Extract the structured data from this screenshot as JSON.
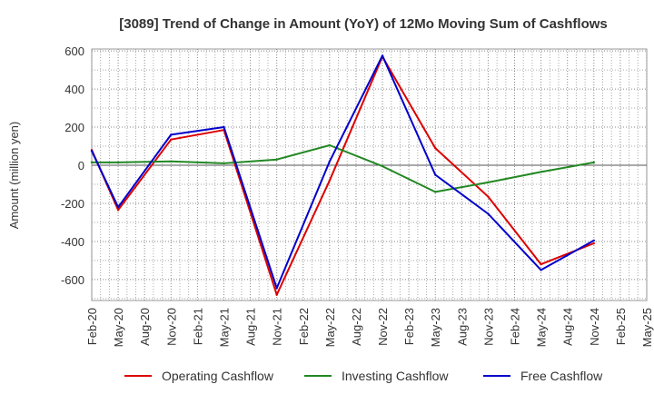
{
  "chart_data": {
    "type": "line",
    "title": "[3089]  Trend of Change in Amount (YoY) of 12Mo Moving Sum of Cashflows",
    "xlabel": "",
    "ylabel": "Amount (million yen)",
    "ylim": [
      -710,
      610
    ],
    "yticks": [
      -600,
      -400,
      -200,
      0,
      200,
      400,
      600
    ],
    "grid": true,
    "legend_position": "bottom",
    "categories": [
      "Feb-20",
      "May-20",
      "Aug-20",
      "Nov-20",
      "Feb-21",
      "May-21",
      "Aug-21",
      "Nov-21",
      "Feb-22",
      "May-22",
      "Aug-22",
      "Nov-22",
      "Feb-23",
      "May-23",
      "Aug-23",
      "Nov-23",
      "Feb-24",
      "May-24",
      "Aug-24",
      "Nov-24",
      "Feb-25",
      "May-25"
    ],
    "series": [
      {
        "name": "Operating Cashflow",
        "color": "#dd0000",
        "values": [
          80,
          -235,
          null,
          135,
          null,
          185,
          null,
          -680,
          null,
          -80,
          null,
          570,
          null,
          90,
          null,
          -165,
          null,
          -520,
          null,
          -410,
          null,
          null
        ]
      },
      {
        "name": "Investing Cashflow",
        "color": "#228822",
        "values": [
          15,
          15,
          null,
          20,
          null,
          10,
          null,
          30,
          null,
          105,
          null,
          -5,
          null,
          -140,
          null,
          -90,
          null,
          -35,
          null,
          15,
          null,
          null
        ]
      },
      {
        "name": "Free Cashflow",
        "color": "#0000cc",
        "values": [
          75,
          -220,
          null,
          160,
          null,
          200,
          null,
          -645,
          null,
          20,
          null,
          575,
          null,
          -50,
          null,
          -255,
          null,
          -550,
          null,
          -395,
          null,
          null
        ]
      }
    ]
  }
}
